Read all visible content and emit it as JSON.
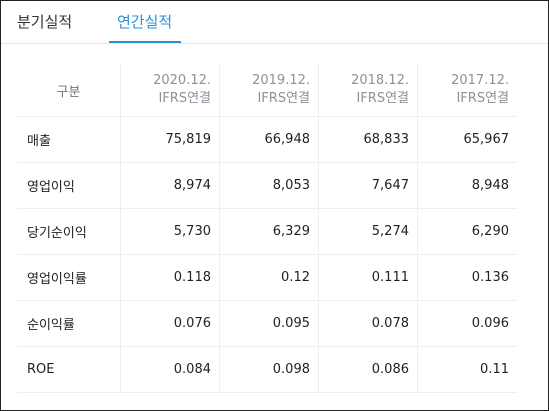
{
  "tabs": {
    "quarter": "분기실적",
    "annual": "연간실적"
  },
  "colors": {
    "active_tab": "#2a8fd8",
    "border": "#eceef1"
  },
  "table": {
    "header": {
      "label": "구분",
      "columns": [
        {
          "period": "2020.12.",
          "basis": "IFRS연결"
        },
        {
          "period": "2019.12.",
          "basis": "IFRS연결"
        },
        {
          "period": "2018.12.",
          "basis": "IFRS연결"
        },
        {
          "period": "2017.12.",
          "basis": "IFRS연결"
        }
      ]
    },
    "rows": [
      {
        "label": "매출",
        "values": [
          "75,819",
          "66,948",
          "68,833",
          "65,967"
        ]
      },
      {
        "label": "영업이익",
        "values": [
          "8,974",
          "8,053",
          "7,647",
          "8,948"
        ]
      },
      {
        "label": "당기순이익",
        "values": [
          "5,730",
          "6,329",
          "5,274",
          "6,290"
        ]
      },
      {
        "label": "영업이익률",
        "values": [
          "0.118",
          "0.12",
          "0.111",
          "0.136"
        ]
      },
      {
        "label": "순이익률",
        "values": [
          "0.076",
          "0.095",
          "0.078",
          "0.096"
        ]
      },
      {
        "label": "ROE",
        "values": [
          "0.084",
          "0.098",
          "0.086",
          "0.11"
        ]
      }
    ]
  }
}
